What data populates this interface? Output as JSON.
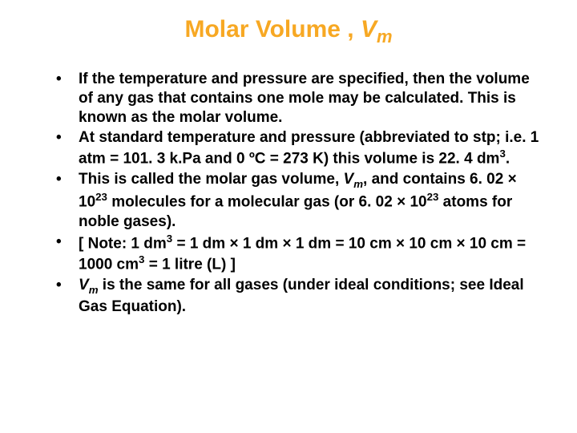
{
  "title": {
    "main": "Molar Volume , ",
    "symbol": "V",
    "subscript": "m",
    "color": "#f7a823",
    "fontsize": 30
  },
  "body": {
    "fontsize": 19,
    "color": "#000000",
    "fontweight": "bold"
  },
  "bullets": [
    {
      "segments": [
        {
          "t": "If the temperature and pressure are specified, then the volume of any gas that contains one mole may be calculated. This is known as the molar volume."
        }
      ]
    },
    {
      "segments": [
        {
          "t": "At standard temperature and pressure (abbreviated to stp; i.e. 1 atm = 101. 3 k.Pa and 0 ºC = 273 K) this volume is 22. 4 dm"
        },
        {
          "t": "3",
          "sup": true
        },
        {
          "t": "."
        }
      ]
    },
    {
      "segments": [
        {
          "t": "This is called the molar gas volume, "
        },
        {
          "t": "V",
          "i": true
        },
        {
          "t": "m",
          "subm": true
        },
        {
          "t": ", and contains 6. 02 × 10"
        },
        {
          "t": "23",
          "sup": true
        },
        {
          "t": " molecules for a molecular gas (or 6. 02 × 10"
        },
        {
          "t": "23",
          "sup": true
        },
        {
          "t": " atoms for noble gases)."
        }
      ]
    },
    {
      "segments": [
        {
          "t": "[ Note: 1 dm"
        },
        {
          "t": "3",
          "sup": true
        },
        {
          "t": " = 1 dm × 1 dm × 1 dm = 10 cm × 10 cm × 10 cm = 1000 cm"
        },
        {
          "t": "3",
          "sup": true
        },
        {
          "t": " = 1 litre (L) ]"
        }
      ]
    },
    {
      "segments": [
        {
          "t": "V",
          "i": true
        },
        {
          "t": "m",
          "subm": true
        },
        {
          "t": " is the same for all gases (under ideal conditions; see Ideal Gas Equation)."
        }
      ]
    }
  ]
}
